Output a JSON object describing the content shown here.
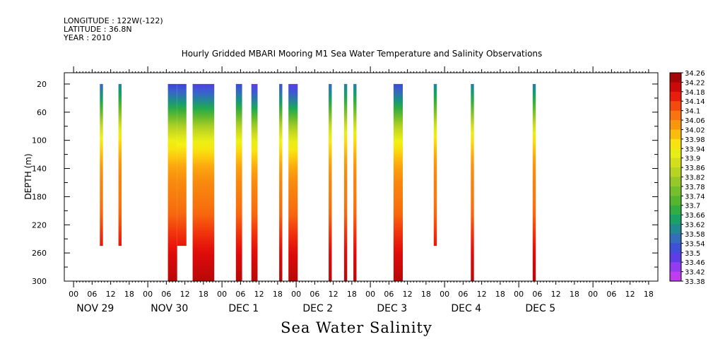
{
  "header": {
    "longitude": "LONGITUDE : 122W(-122)",
    "latitude": "LATITUDE : 36.8N",
    "year": "YEAR : 2010"
  },
  "footer": {
    "variable": "Sea Water Salinity"
  },
  "chart_data": {
    "type": "heatmap",
    "title": "Hourly Gridded MBARI Mooring M1 Sea Water Temperature and Salinity Observations",
    "ylabel": "DEPTH (m)",
    "xlabel": "",
    "x_unit": "hours since NOV 28 00:00, 2010",
    "xlim": [
      -3,
      189
    ],
    "ylim": [
      300,
      4
    ],
    "y_ticks": [
      20,
      60,
      100,
      140,
      180,
      220,
      260,
      300
    ],
    "x_hour_ticks": [
      "00",
      "06",
      "12",
      "18"
    ],
    "day_labels": [
      {
        "label": "NOV 29",
        "center_hour": 36
      },
      {
        "label": "NOV 30",
        "center_hour": 60
      },
      {
        "label": "DEC  1",
        "center_hour": 84
      },
      {
        "label": "DEC  2",
        "center_hour": 108
      },
      {
        "label": "DEC  3",
        "center_hour": 132
      },
      {
        "label": "DEC  4",
        "center_hour": 156
      },
      {
        "label": "DEC  5",
        "center_hour": 180
      }
    ],
    "colorbar": {
      "min": 33.38,
      "max": 34.26,
      "step": 0.04,
      "labels": [
        "34.26",
        "34.22",
        "34.18",
        "34.14",
        "34.1",
        "34.06",
        "34.02",
        "33.98",
        "33.94",
        "33.9",
        "33.86",
        "33.82",
        "33.78",
        "33.74",
        "33.7",
        "33.66",
        "33.62",
        "33.58",
        "33.54",
        "33.5",
        "33.46",
        "33.42",
        "33.38"
      ]
    },
    "profile": [
      {
        "depth": 20,
        "value": 33.55
      },
      {
        "depth": 40,
        "value": 33.63
      },
      {
        "depth": 60,
        "value": 33.74
      },
      {
        "depth": 80,
        "value": 33.86
      },
      {
        "depth": 100,
        "value": 33.95
      },
      {
        "depth": 120,
        "value": 34.0
      },
      {
        "depth": 140,
        "value": 34.04
      },
      {
        "depth": 160,
        "value": 34.06
      },
      {
        "depth": 180,
        "value": 34.07
      },
      {
        "depth": 200,
        "value": 34.09
      },
      {
        "depth": 220,
        "value": 34.12
      },
      {
        "depth": 240,
        "value": 34.15
      },
      {
        "depth": 260,
        "value": 34.18
      },
      {
        "depth": 300,
        "value": 34.22
      }
    ],
    "segments": [
      {
        "start_hour": 8.5,
        "end_hour": 9.5,
        "max_depth": 250,
        "surface_offset": 0.0
      },
      {
        "start_hour": 14.5,
        "end_hour": 15.5,
        "max_depth": 250,
        "surface_offset": 0.04
      },
      {
        "start_hour": 30.5,
        "end_hour": 33.5,
        "max_depth": 300,
        "surface_offset": -0.05
      },
      {
        "start_hour": 33.5,
        "end_hour": 36.5,
        "max_depth": 250,
        "surface_offset": -0.05
      },
      {
        "start_hour": 38.5,
        "end_hour": 45.5,
        "max_depth": 300,
        "surface_offset": -0.06
      },
      {
        "start_hour": 52.5,
        "end_hour": 54.5,
        "max_depth": 300,
        "surface_offset": -0.04
      },
      {
        "start_hour": 57.5,
        "end_hour": 59.5,
        "max_depth": 300,
        "surface_offset": -0.07
      },
      {
        "start_hour": 66.5,
        "end_hour": 67.5,
        "max_depth": 300,
        "surface_offset": -0.03
      },
      {
        "start_hour": 69.5,
        "end_hour": 72.5,
        "max_depth": 300,
        "surface_offset": -0.07
      },
      {
        "start_hour": 82.5,
        "end_hour": 83.5,
        "max_depth": 300,
        "surface_offset": 0.0
      },
      {
        "start_hour": 87.5,
        "end_hour": 88.5,
        "max_depth": 300,
        "surface_offset": 0.03
      },
      {
        "start_hour": 90.5,
        "end_hour": 91.5,
        "max_depth": 300,
        "surface_offset": 0.03
      },
      {
        "start_hour": 103.5,
        "end_hour": 106.5,
        "max_depth": 300,
        "surface_offset": -0.04
      },
      {
        "start_hour": 116.5,
        "end_hour": 117.5,
        "max_depth": 250,
        "surface_offset": 0.04
      },
      {
        "start_hour": 128.5,
        "end_hour": 129.5,
        "max_depth": 300,
        "surface_offset": 0.03
      },
      {
        "start_hour": 148.5,
        "end_hour": 149.5,
        "max_depth": 300,
        "surface_offset": 0.03
      }
    ]
  }
}
